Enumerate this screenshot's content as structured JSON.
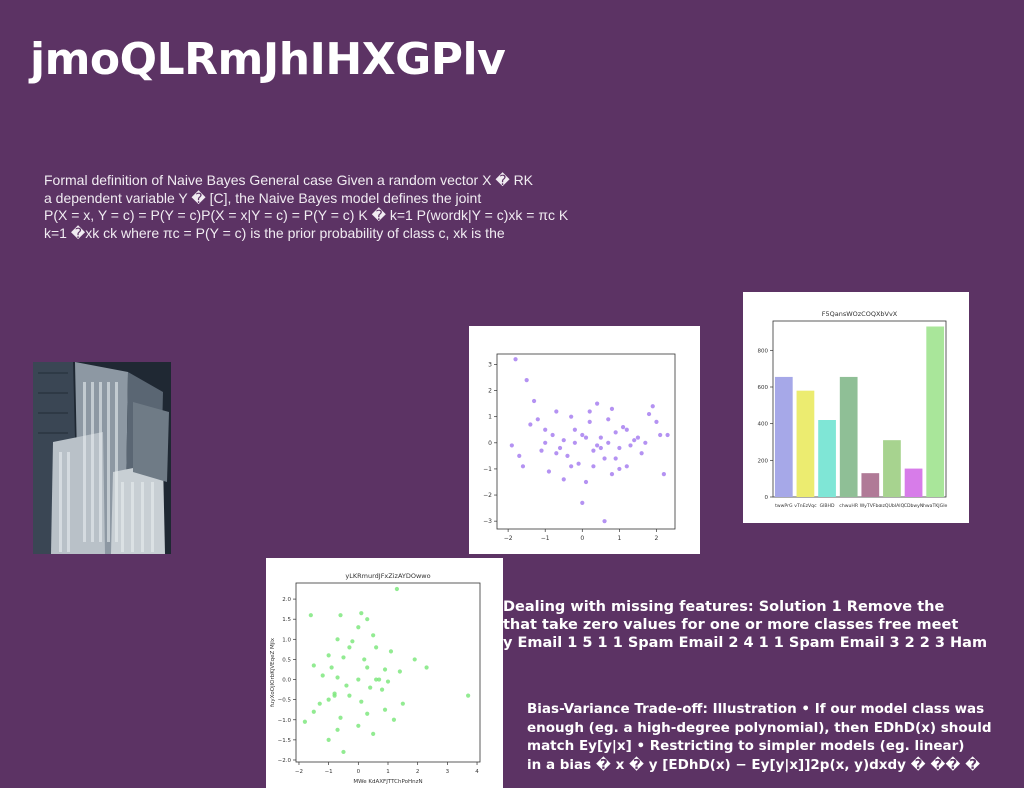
{
  "slide": {
    "title": "jmoQLRmJhIHXGPlv",
    "paragraph_lines": [
      "Formal definition of Naive Bayes General case Given a random vector X � RK",
      "a dependent variable Y � [C], the Naive Bayes model defines the joint",
      "P(X = x, Y = c) = P(Y = c)P(X = x|Y = c) = P(Y = c) K � k=1 P(wordk|Y = c)xk = πc K",
      "k=1 �xk ck where πc = P(Y = c) is the prior probability of class c, xk is the"
    ],
    "missing_lines": [
      "Dealing with missing features: Solution 1 Remove the",
      "that take zero values for one or more classes free meet",
      "y Email 1 5 1 1 Spam Email 2 4 1 1 Spam Email 3 2 2 3 Ham"
    ],
    "bias_lines": [
      "Bias-Variance Trade-off: Illustration • If our model class was",
      "enough (eg. a high-degree polynomial), then EDhD(x) should",
      "match Ey[y|x] • Restricting to simpler models (eg. linear)",
      "in a bias � x � y [EDhD(x) − Ey[y|x]]2p(x, y)dxdy � �� �"
    ]
  },
  "colors": {
    "background": "#5c3364",
    "scatter_purple": "#a77ff0",
    "scatter_green": "#7fe87f"
  },
  "chart_data": [
    {
      "type": "scatter",
      "title": "",
      "xlabel": "",
      "ylabel": "",
      "xlim": [
        -2.3,
        2.5
      ],
      "ylim": [
        -3.3,
        3.4
      ],
      "xticks": [
        -2,
        -1,
        0,
        1,
        2
      ],
      "yticks": [
        -3,
        -2,
        -1,
        0,
        1,
        2,
        3
      ],
      "color": "#a77ff0",
      "points": [
        [
          -1.8,
          3.2
        ],
        [
          -1.5,
          2.4
        ],
        [
          -1.3,
          1.6
        ],
        [
          -1.2,
          0.9
        ],
        [
          -1.0,
          0.5
        ],
        [
          -0.8,
          0.3
        ],
        [
          -0.7,
          1.2
        ],
        [
          -0.6,
          -0.2
        ],
        [
          -0.5,
          0.1
        ],
        [
          -0.4,
          -0.5
        ],
        [
          -0.3,
          1.0
        ],
        [
          -0.2,
          0.0
        ],
        [
          -0.1,
          -0.8
        ],
        [
          0.0,
          0.3
        ],
        [
          0.1,
          -1.5
        ],
        [
          0.2,
          0.8
        ],
        [
          0.3,
          -0.3
        ],
        [
          0.4,
          1.5
        ],
        [
          0.5,
          0.2
        ],
        [
          0.6,
          -0.6
        ],
        [
          0.7,
          0.9
        ],
        [
          0.8,
          -1.2
        ],
        [
          0.9,
          0.4
        ],
        [
          1.0,
          -0.2
        ],
        [
          1.1,
          0.6
        ],
        [
          1.2,
          -0.9
        ],
        [
          1.4,
          0.1
        ],
        [
          1.6,
          -0.4
        ],
        [
          1.8,
          1.1
        ],
        [
          2.0,
          0.8
        ],
        [
          2.2,
          -1.2
        ],
        [
          2.1,
          0.3
        ],
        [
          -1.9,
          -0.1
        ],
        [
          -1.6,
          -0.9
        ],
        [
          -1.1,
          -0.3
        ],
        [
          -0.9,
          -1.1
        ],
        [
          -0.5,
          -1.4
        ],
        [
          0.0,
          -2.3
        ],
        [
          0.3,
          -0.9
        ],
        [
          0.6,
          -3.0
        ],
        [
          0.9,
          -0.6
        ],
        [
          1.3,
          -0.1
        ],
        [
          1.5,
          0.2
        ],
        [
          1.7,
          0.0
        ],
        [
          2.3,
          0.3
        ],
        [
          -1.4,
          0.7
        ],
        [
          -0.2,
          0.5
        ],
        [
          0.2,
          1.2
        ],
        [
          0.7,
          0.0
        ],
        [
          1.0,
          -1.0
        ],
        [
          -0.7,
          -0.4
        ],
        [
          0.5,
          -0.2
        ],
        [
          1.9,
          1.4
        ],
        [
          -1.7,
          -0.5
        ],
        [
          0.8,
          1.3
        ],
        [
          -0.3,
          -0.9
        ],
        [
          0.1,
          0.2
        ],
        [
          0.4,
          -0.1
        ],
        [
          1.2,
          0.5
        ],
        [
          -1.0,
          0.0
        ]
      ]
    },
    {
      "type": "bar",
      "title": "F5QansWOzCOQXbVvX",
      "xlabel": "",
      "ylabel": "",
      "ylim": [
        0,
        960
      ],
      "yticks": [
        0,
        200,
        400,
        600,
        800
      ],
      "categories": [
        "twwPrG",
        "vTnEzVqc",
        "GlBHD",
        "chwuHR",
        "WyTVFbc",
        "ezQUbIAlQ",
        "CDbwyN",
        "hwaTKJGIe"
      ],
      "values": [
        655,
        580,
        420,
        655,
        130,
        310,
        155,
        930
      ],
      "colors": [
        "#a6a8e8",
        "#ecec70",
        "#7fe6d6",
        "#8fbf96",
        "#b07a97",
        "#a7d38f",
        "#d77ce9",
        "#a9e69a"
      ]
    },
    {
      "type": "scatter",
      "title": "yLKRmurdJFxZizAYDOwwo",
      "xlabel": "MWe KdAXFJTTChPoHnzN",
      "ylabel": "fuyXoOjlOrbKjVEqeZ Mjlx",
      "xlim": [
        -2.1,
        4.1
      ],
      "ylim": [
        -2.05,
        2.4
      ],
      "xticks": [
        -2,
        -1,
        0,
        1,
        2,
        3,
        4
      ],
      "yticks": [
        -2.0,
        -1.5,
        -1.0,
        -0.5,
        0.0,
        0.5,
        1.0,
        1.5,
        2.0
      ],
      "color": "#7fe87f",
      "points": [
        [
          1.3,
          2.25
        ],
        [
          -1.6,
          1.6
        ],
        [
          -0.6,
          1.6
        ],
        [
          0.1,
          1.65
        ],
        [
          0.3,
          1.5
        ],
        [
          0.0,
          1.3
        ],
        [
          0.5,
          1.1
        ],
        [
          -0.7,
          1.0
        ],
        [
          -0.3,
          0.8
        ],
        [
          0.6,
          0.8
        ],
        [
          1.1,
          0.7
        ],
        [
          -1.0,
          0.6
        ],
        [
          -0.5,
          0.55
        ],
        [
          0.2,
          0.5
        ],
        [
          1.9,
          0.5
        ],
        [
          -1.5,
          0.35
        ],
        [
          -0.9,
          0.3
        ],
        [
          0.3,
          0.3
        ],
        [
          0.9,
          0.25
        ],
        [
          1.4,
          0.2
        ],
        [
          -1.2,
          0.1
        ],
        [
          -0.7,
          0.05
        ],
        [
          0.0,
          0.0
        ],
        [
          0.6,
          0.0
        ],
        [
          1.0,
          -0.05
        ],
        [
          -0.4,
          -0.15
        ],
        [
          0.4,
          -0.2
        ],
        [
          0.8,
          -0.25
        ],
        [
          -0.8,
          -0.35
        ],
        [
          -0.3,
          -0.4
        ],
        [
          -1.0,
          -0.5
        ],
        [
          0.1,
          -0.55
        ],
        [
          1.5,
          -0.6
        ],
        [
          -1.3,
          -0.6
        ],
        [
          0.9,
          -0.75
        ],
        [
          -1.5,
          -0.8
        ],
        [
          0.3,
          -0.85
        ],
        [
          -0.6,
          -0.95
        ],
        [
          1.2,
          -1.0
        ],
        [
          -1.8,
          -1.05
        ],
        [
          0.0,
          -1.15
        ],
        [
          -0.7,
          -1.25
        ],
        [
          0.5,
          -1.35
        ],
        [
          -1.0,
          -1.5
        ],
        [
          -0.5,
          -1.8
        ],
        [
          3.7,
          -0.4
        ],
        [
          2.3,
          0.3
        ],
        [
          -0.8,
          -0.4
        ],
        [
          0.7,
          0.0
        ],
        [
          -0.2,
          0.95
        ]
      ]
    }
  ]
}
